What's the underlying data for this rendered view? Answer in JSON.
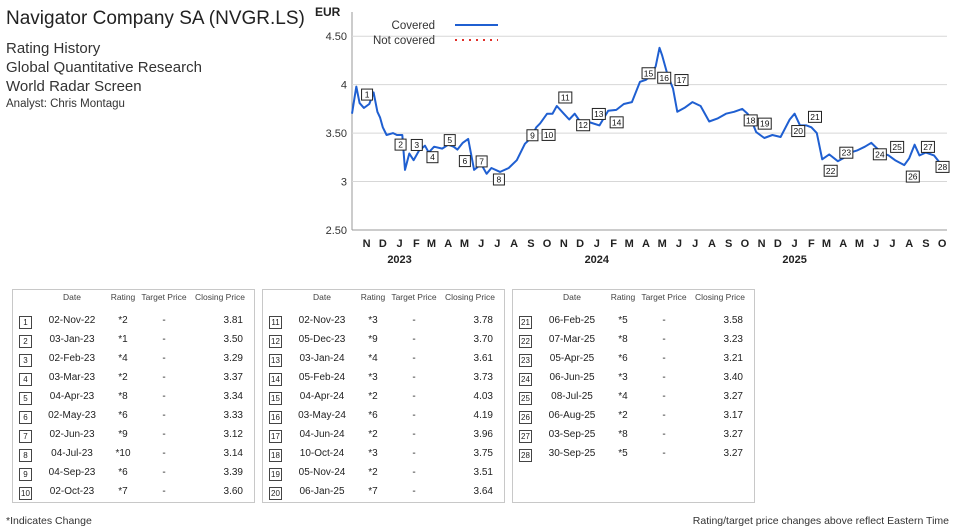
{
  "header": {
    "company": "Navigator Company SA (NVGR.LS)",
    "lines": [
      "Rating History",
      "Global Quantitative Research",
      "World Radar Screen"
    ],
    "analyst": "Analyst: Chris Montagu"
  },
  "chart_data": {
    "type": "line",
    "ylabel": "EUR",
    "ylim": [
      2.5,
      4.75
    ],
    "yticks": [
      "2.50",
      "3",
      "3.50",
      "4",
      "4.50"
    ],
    "ytick_values": [
      2.5,
      3,
      3.5,
      4,
      4.5
    ],
    "month_ticks": [
      "N",
      "D",
      "J",
      "F",
      "M",
      "A",
      "M",
      "J",
      "J",
      "A",
      "S",
      "O",
      "N",
      "D",
      "J",
      "F",
      "M",
      "A",
      "M",
      "J",
      "J",
      "A",
      "S",
      "O",
      "N",
      "D",
      "J",
      "F",
      "M",
      "A",
      "M",
      "J",
      "J",
      "A",
      "S",
      "O"
    ],
    "year_labels": [
      {
        "label": "2023",
        "month_index": 2
      },
      {
        "label": "2024",
        "month_index": 14
      },
      {
        "label": "2025",
        "month_index": 26
      }
    ],
    "x_range": [
      "2022-10-19",
      "2025-10-24"
    ],
    "grid": "horizontal",
    "legend": {
      "position": "top-left",
      "entries": [
        {
          "label": "Covered",
          "style": "solid",
          "color": "#1f5fd1"
        },
        {
          "label": "Not covered",
          "style": "dotted",
          "color": "#e0302a"
        }
      ]
    },
    "series": [
      {
        "name": "Covered",
        "color": "#1f5fd1",
        "points": [
          [
            "2022-10-19",
            3.7
          ],
          [
            "2022-10-27",
            3.98
          ],
          [
            "2022-11-02",
            3.81
          ],
          [
            "2022-11-10",
            3.76
          ],
          [
            "2022-11-20",
            3.8
          ],
          [
            "2022-11-28",
            3.92
          ],
          [
            "2022-12-05",
            3.72
          ],
          [
            "2022-12-10",
            3.66
          ],
          [
            "2022-12-15",
            3.56
          ],
          [
            "2022-12-22",
            3.48
          ],
          [
            "2023-01-03",
            3.5
          ],
          [
            "2023-01-10",
            3.48
          ],
          [
            "2023-01-20",
            3.48
          ],
          [
            "2023-01-25",
            3.12
          ],
          [
            "2023-02-02",
            3.29
          ],
          [
            "2023-02-10",
            3.22
          ],
          [
            "2023-02-20",
            3.32
          ],
          [
            "2023-03-03",
            3.37
          ],
          [
            "2023-03-10",
            3.3
          ],
          [
            "2023-03-20",
            3.36
          ],
          [
            "2023-04-04",
            3.34
          ],
          [
            "2023-04-15",
            3.38
          ],
          [
            "2023-04-25",
            3.36
          ],
          [
            "2023-05-02",
            3.33
          ],
          [
            "2023-05-12",
            3.4
          ],
          [
            "2023-05-22",
            3.44
          ],
          [
            "2023-06-02",
            3.12
          ],
          [
            "2023-06-15",
            3.18
          ],
          [
            "2023-06-25",
            3.08
          ],
          [
            "2023-07-04",
            3.14
          ],
          [
            "2023-07-20",
            3.1
          ],
          [
            "2023-08-05",
            3.14
          ],
          [
            "2023-08-20",
            3.22
          ],
          [
            "2023-09-04",
            3.39
          ],
          [
            "2023-09-15",
            3.45
          ],
          [
            "2023-09-25",
            3.56
          ],
          [
            "2023-10-02",
            3.6
          ],
          [
            "2023-10-15",
            3.7
          ],
          [
            "2023-10-25",
            3.7
          ],
          [
            "2023-11-02",
            3.78
          ],
          [
            "2023-11-15",
            3.7
          ],
          [
            "2023-11-25",
            3.64
          ],
          [
            "2023-12-05",
            3.7
          ],
          [
            "2023-12-15",
            3.62
          ],
          [
            "2024-01-03",
            3.61
          ],
          [
            "2024-01-20",
            3.58
          ],
          [
            "2024-02-05",
            3.73
          ],
          [
            "2024-02-20",
            3.74
          ],
          [
            "2024-03-05",
            3.8
          ],
          [
            "2024-03-20",
            3.82
          ],
          [
            "2024-04-04",
            4.03
          ],
          [
            "2024-04-15",
            4.05
          ],
          [
            "2024-04-25",
            4.1
          ],
          [
            "2024-05-03",
            4.19
          ],
          [
            "2024-05-10",
            4.38
          ],
          [
            "2024-05-15",
            4.3
          ],
          [
            "2024-05-25",
            4.1
          ],
          [
            "2024-06-04",
            3.96
          ],
          [
            "2024-06-12",
            3.72
          ],
          [
            "2024-06-25",
            3.76
          ],
          [
            "2024-07-10",
            3.82
          ],
          [
            "2024-07-25",
            3.78
          ],
          [
            "2024-08-10",
            3.62
          ],
          [
            "2024-08-25",
            3.65
          ],
          [
            "2024-09-10",
            3.7
          ],
          [
            "2024-09-25",
            3.72
          ],
          [
            "2024-10-10",
            3.75
          ],
          [
            "2024-10-20",
            3.7
          ],
          [
            "2024-10-28",
            3.62
          ],
          [
            "2024-11-05",
            3.51
          ],
          [
            "2024-11-20",
            3.45
          ],
          [
            "2024-12-05",
            3.48
          ],
          [
            "2024-12-20",
            3.46
          ],
          [
            "2025-01-06",
            3.64
          ],
          [
            "2025-01-15",
            3.7
          ],
          [
            "2025-01-25",
            3.58
          ],
          [
            "2025-02-06",
            3.58
          ],
          [
            "2025-02-15",
            3.56
          ],
          [
            "2025-02-25",
            3.5
          ],
          [
            "2025-03-07",
            3.23
          ],
          [
            "2025-03-20",
            3.28
          ],
          [
            "2025-04-05",
            3.21
          ],
          [
            "2025-04-15",
            3.24
          ],
          [
            "2025-04-28",
            3.3
          ],
          [
            "2025-05-10",
            3.32
          ],
          [
            "2025-05-25",
            3.36
          ],
          [
            "2025-06-06",
            3.4
          ],
          [
            "2025-06-15",
            3.35
          ],
          [
            "2025-06-25",
            3.3
          ],
          [
            "2025-07-08",
            3.27
          ],
          [
            "2025-07-20",
            3.22
          ],
          [
            "2025-08-06",
            3.17
          ],
          [
            "2025-08-15",
            3.24
          ],
          [
            "2025-08-25",
            3.38
          ],
          [
            "2025-09-03",
            3.27
          ],
          [
            "2025-09-15",
            3.3
          ],
          [
            "2025-09-30",
            3.27
          ],
          [
            "2025-10-10",
            3.2
          ],
          [
            "2025-10-24",
            3.16
          ]
        ]
      }
    ],
    "markers": [
      {
        "n": "1",
        "date": "2022-11-02",
        "price": 3.81
      },
      {
        "n": "2",
        "date": "2023-01-03",
        "price": 3.5
      },
      {
        "n": "3",
        "date": "2023-02-02",
        "price": 3.29
      },
      {
        "n": "4",
        "date": "2023-03-03",
        "price": 3.37
      },
      {
        "n": "5",
        "date": "2023-04-04",
        "price": 3.34
      },
      {
        "n": "6",
        "date": "2023-05-02",
        "price": 3.33
      },
      {
        "n": "7",
        "date": "2023-06-02",
        "price": 3.12
      },
      {
        "n": "8",
        "date": "2023-07-04",
        "price": 3.14
      },
      {
        "n": "9",
        "date": "2023-09-04",
        "price": 3.39
      },
      {
        "n": "10",
        "date": "2023-10-02",
        "price": 3.6
      },
      {
        "n": "11",
        "date": "2023-11-02",
        "price": 3.78
      },
      {
        "n": "12",
        "date": "2023-12-05",
        "price": 3.7
      },
      {
        "n": "13",
        "date": "2024-01-03",
        "price": 3.61
      },
      {
        "n": "14",
        "date": "2024-02-05",
        "price": 3.73
      },
      {
        "n": "15",
        "date": "2024-04-04",
        "price": 4.03
      },
      {
        "n": "16",
        "date": "2024-05-03",
        "price": 4.19
      },
      {
        "n": "17",
        "date": "2024-06-04",
        "price": 3.96
      },
      {
        "n": "18",
        "date": "2024-10-10",
        "price": 3.75
      },
      {
        "n": "19",
        "date": "2024-11-05",
        "price": 3.51
      },
      {
        "n": "20",
        "date": "2025-01-06",
        "price": 3.64
      },
      {
        "n": "21",
        "date": "2025-02-06",
        "price": 3.58
      },
      {
        "n": "22",
        "date": "2025-03-07",
        "price": 3.23
      },
      {
        "n": "23",
        "date": "2025-04-05",
        "price": 3.21
      },
      {
        "n": "24",
        "date": "2025-06-06",
        "price": 3.4
      },
      {
        "n": "25",
        "date": "2025-07-08",
        "price": 3.27
      },
      {
        "n": "26",
        "date": "2025-08-06",
        "price": 3.17
      },
      {
        "n": "27",
        "date": "2025-09-03",
        "price": 3.27
      },
      {
        "n": "28",
        "date": "2025-09-30",
        "price": 3.27
      }
    ]
  },
  "table": {
    "headers": {
      "date": "Date",
      "rating": "Rating",
      "target": "Target Price",
      "close": "Closing Price"
    },
    "rows": [
      {
        "n": "1",
        "date": "02-Nov-22",
        "rating": "*2",
        "target": "-",
        "close": "3.81"
      },
      {
        "n": "2",
        "date": "03-Jan-23",
        "rating": "*1",
        "target": "-",
        "close": "3.50"
      },
      {
        "n": "3",
        "date": "02-Feb-23",
        "rating": "*4",
        "target": "-",
        "close": "3.29"
      },
      {
        "n": "4",
        "date": "03-Mar-23",
        "rating": "*2",
        "target": "-",
        "close": "3.37"
      },
      {
        "n": "5",
        "date": "04-Apr-23",
        "rating": "*8",
        "target": "-",
        "close": "3.34"
      },
      {
        "n": "6",
        "date": "02-May-23",
        "rating": "*6",
        "target": "-",
        "close": "3.33"
      },
      {
        "n": "7",
        "date": "02-Jun-23",
        "rating": "*9",
        "target": "-",
        "close": "3.12"
      },
      {
        "n": "8",
        "date": "04-Jul-23",
        "rating": "*10",
        "target": "-",
        "close": "3.14"
      },
      {
        "n": "9",
        "date": "04-Sep-23",
        "rating": "*6",
        "target": "-",
        "close": "3.39"
      },
      {
        "n": "10",
        "date": "02-Oct-23",
        "rating": "*7",
        "target": "-",
        "close": "3.60"
      },
      {
        "n": "11",
        "date": "02-Nov-23",
        "rating": "*3",
        "target": "-",
        "close": "3.78"
      },
      {
        "n": "12",
        "date": "05-Dec-23",
        "rating": "*9",
        "target": "-",
        "close": "3.70"
      },
      {
        "n": "13",
        "date": "03-Jan-24",
        "rating": "*4",
        "target": "-",
        "close": "3.61"
      },
      {
        "n": "14",
        "date": "05-Feb-24",
        "rating": "*3",
        "target": "-",
        "close": "3.73"
      },
      {
        "n": "15",
        "date": "04-Apr-24",
        "rating": "*2",
        "target": "-",
        "close": "4.03"
      },
      {
        "n": "16",
        "date": "03-May-24",
        "rating": "*6",
        "target": "-",
        "close": "4.19"
      },
      {
        "n": "17",
        "date": "04-Jun-24",
        "rating": "*2",
        "target": "-",
        "close": "3.96"
      },
      {
        "n": "18",
        "date": "10-Oct-24",
        "rating": "*3",
        "target": "-",
        "close": "3.75"
      },
      {
        "n": "19",
        "date": "05-Nov-24",
        "rating": "*2",
        "target": "-",
        "close": "3.51"
      },
      {
        "n": "20",
        "date": "06-Jan-25",
        "rating": "*7",
        "target": "-",
        "close": "3.64"
      },
      {
        "n": "21",
        "date": "06-Feb-25",
        "rating": "*5",
        "target": "-",
        "close": "3.58"
      },
      {
        "n": "22",
        "date": "07-Mar-25",
        "rating": "*8",
        "target": "-",
        "close": "3.23"
      },
      {
        "n": "23",
        "date": "05-Apr-25",
        "rating": "*6",
        "target": "-",
        "close": "3.21"
      },
      {
        "n": "24",
        "date": "06-Jun-25",
        "rating": "*3",
        "target": "-",
        "close": "3.40"
      },
      {
        "n": "25",
        "date": "08-Jul-25",
        "rating": "*4",
        "target": "-",
        "close": "3.27"
      },
      {
        "n": "26",
        "date": "06-Aug-25",
        "rating": "*2",
        "target": "-",
        "close": "3.17"
      },
      {
        "n": "27",
        "date": "03-Sep-25",
        "rating": "*8",
        "target": "-",
        "close": "3.27"
      },
      {
        "n": "28",
        "date": "30-Sep-25",
        "rating": "*5",
        "target": "-",
        "close": "3.27"
      }
    ]
  },
  "footer": {
    "left": "*Indicates Change",
    "right": "Rating/target price changes above reflect Eastern Time"
  }
}
